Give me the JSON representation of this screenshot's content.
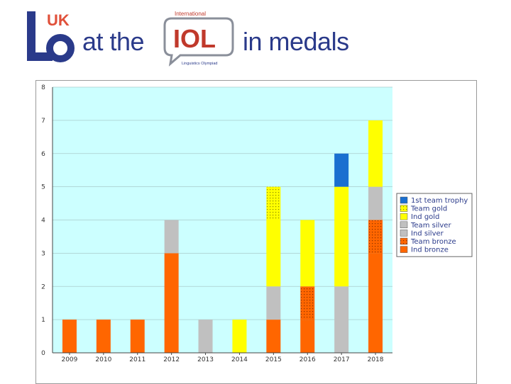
{
  "header": {
    "logo_text": "UK",
    "title_part1": "at the",
    "iol_logo": {
      "top_text": "International",
      "main_text": "IOL",
      "bottom_text": "Linguistics Olympiad"
    },
    "title_part2": "in medals"
  },
  "colors": {
    "plot_bg": "#ccffff",
    "1st team trophy": "#1a6fd0",
    "Team gold": "#ffff00",
    "Ind gold": "#ffff00",
    "Team silver": "#c0c0c0",
    "Ind silver": "#c0c0c0",
    "Team bronze": "#ff6600",
    "Ind bronze": "#ff6600",
    "logo_blue": "#2a3a8a",
    "logo_red": "#e0503a"
  },
  "chart_data": {
    "type": "bar",
    "stacked": true,
    "title": "",
    "xlabel": "",
    "ylabel": "",
    "ylim": [
      0,
      8
    ],
    "yticks": [
      0,
      1,
      2,
      3,
      4,
      5,
      6,
      7,
      8
    ],
    "grid": true,
    "legend_position": "right",
    "categories": [
      "2009",
      "2010",
      "2011",
      "2012",
      "2013",
      "2014",
      "2015",
      "2016",
      "2017",
      "2018"
    ],
    "series": [
      {
        "name": "Ind bronze",
        "pattern": false,
        "values": [
          1,
          1,
          1,
          3,
          0,
          0,
          1,
          1,
          0,
          3
        ]
      },
      {
        "name": "Team bronze",
        "pattern": true,
        "values": [
          0,
          0,
          0,
          0,
          0,
          0,
          0,
          1,
          0,
          1
        ]
      },
      {
        "name": "Ind silver",
        "pattern": false,
        "values": [
          0,
          0,
          0,
          1,
          1,
          0,
          1,
          0,
          2,
          1
        ]
      },
      {
        "name": "Team silver",
        "pattern": false,
        "values": [
          0,
          0,
          0,
          0,
          0,
          0,
          0,
          0,
          0,
          0
        ]
      },
      {
        "name": "Ind gold",
        "pattern": false,
        "values": [
          0,
          0,
          0,
          0,
          0,
          1,
          2,
          2,
          3,
          2
        ]
      },
      {
        "name": "Team gold",
        "pattern": true,
        "values": [
          0,
          0,
          0,
          0,
          0,
          0,
          1,
          0,
          0,
          0
        ]
      },
      {
        "name": "1st team trophy",
        "pattern": false,
        "values": [
          0,
          0,
          0,
          0,
          0,
          0,
          0,
          0,
          1,
          0
        ]
      }
    ],
    "legend": [
      "1st team trophy",
      "Team gold",
      "Ind gold",
      "Team silver",
      "Ind silver",
      "Team bronze",
      "Ind bronze"
    ]
  }
}
